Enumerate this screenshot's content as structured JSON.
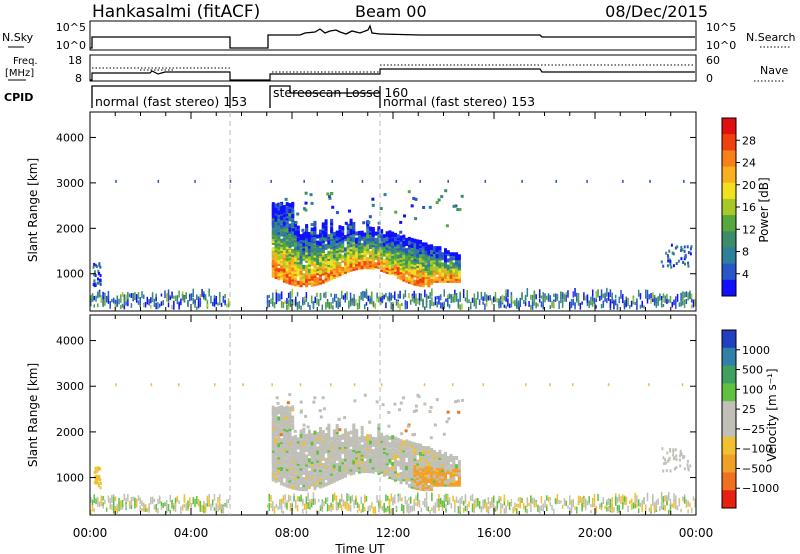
{
  "header": {
    "title": "Hankasalmi (fitACF)",
    "beam": "Beam 00",
    "date": "08/Dec/2015"
  },
  "top_panels": {
    "nsky": {
      "label": "N.Sky",
      "tick_top": "10^5",
      "tick_bottom": "10^0"
    },
    "nsearch": {
      "label": "N.Search",
      "tick_top": "10^5",
      "tick_bottom": "10^0"
    },
    "freq": {
      "label_line1": "Freq.",
      "label_line2": "[MHz]",
      "tick_top": "18",
      "tick_bottom": "8"
    },
    "nave": {
      "label": "Nave",
      "tick_top": "60",
      "tick_bottom": "0"
    },
    "cpid": {
      "label": "CPID"
    }
  },
  "cpid_segments": [
    {
      "label": "normal (fast stereo) 153",
      "start_hour": 0,
      "end_hour": 5.5
    },
    {
      "label": "stereoscan Losse 160",
      "start_hour": 7.0,
      "end_hour": 11.5
    },
    {
      "label": "normal (fast stereo) 153",
      "start_hour": 11.5,
      "end_hour": 24
    }
  ],
  "chart_data": [
    {
      "type": "heatmap",
      "name": "power-panel",
      "ylabel": "Slant Range [km]",
      "yticks": [
        "1000",
        "2000",
        "3000",
        "4000"
      ],
      "ylim": [
        180,
        4560
      ],
      "xlim": [
        0,
        24
      ],
      "colorbar_label": "Power [dB]",
      "colorbar_ticks": [
        "4",
        "8",
        "12",
        "16",
        "20",
        "24",
        "28"
      ],
      "colorbar_colors": [
        "#1010ff",
        "#2855c8",
        "#2e7f9a",
        "#3c8c6a",
        "#56a83a",
        "#a8c828",
        "#f0e020",
        "#f8b020",
        "#f88018",
        "#f04010",
        "#e01010"
      ]
    },
    {
      "type": "heatmap",
      "name": "velocity-panel",
      "ylabel": "Slant Range [km]",
      "yticks": [
        "1000",
        "2000",
        "3000",
        "4000"
      ],
      "ylim": [
        180,
        4560
      ],
      "xlim": [
        0,
        24
      ],
      "colorbar_label": "Velocity [m s⁻¹]",
      "colorbar_ticks": [
        "1000",
        "500",
        "100",
        "25",
        "−25",
        "−100",
        "−500",
        "−1000"
      ],
      "colorbar_colors": [
        "#2040c0",
        "#3080a8",
        "#40a060",
        "#60c040",
        "#c0c0b8",
        "#c0c0b8",
        "#f0c030",
        "#f0a028",
        "#f07020",
        "#e82010"
      ]
    }
  ],
  "time_axis": {
    "xlabel": "Time UT",
    "ticks": [
      "00:00",
      "04:00",
      "08:00",
      "12:00",
      "16:00",
      "20:00",
      "00:00"
    ]
  }
}
